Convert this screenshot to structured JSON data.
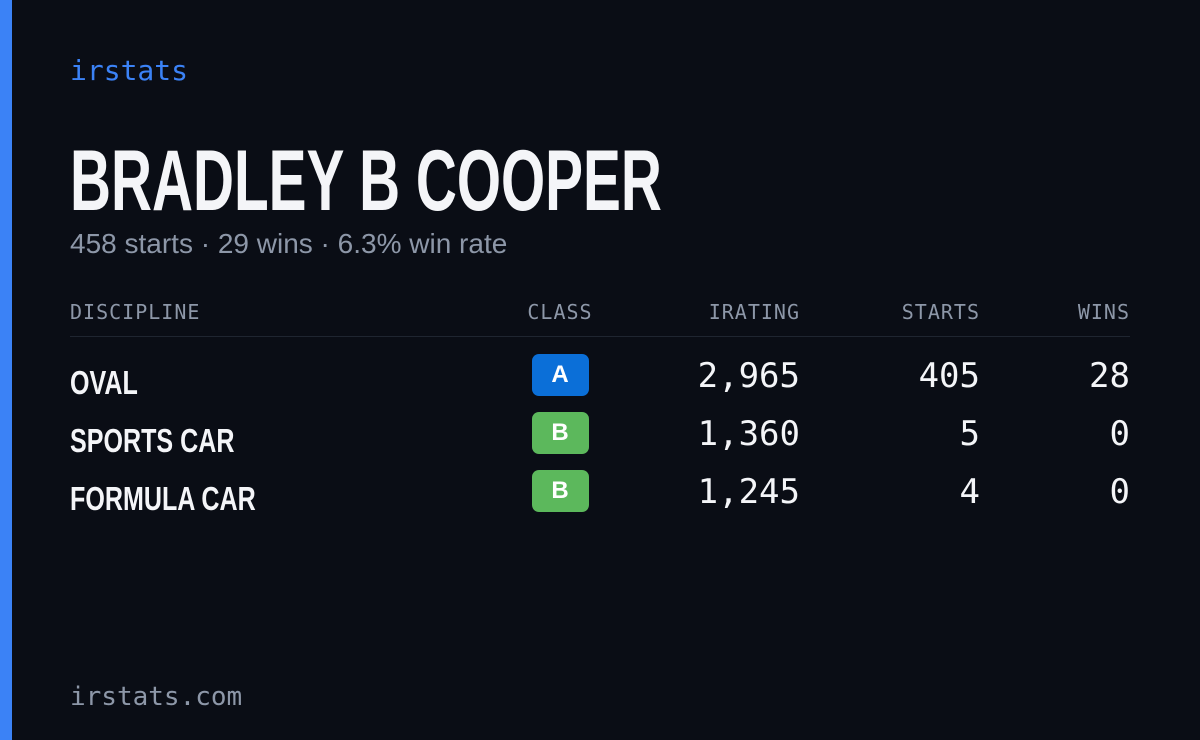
{
  "brand": "irstats",
  "name": "BRADLEY B COOPER",
  "summary": "458 starts · 29 wins · 6.3% win rate",
  "table": {
    "headers": [
      "DISCIPLINE",
      "CLASS",
      "IRATING",
      "STARTS",
      "WINS"
    ],
    "rows": [
      {
        "discipline": "OVAL",
        "class": "A",
        "class_color": "#0b6fd8",
        "irating": "2,965",
        "starts": "405",
        "wins": "28"
      },
      {
        "discipline": "SPORTS CAR",
        "class": "B",
        "class_color": "#5cb85c",
        "irating": "1,360",
        "starts": "5",
        "wins": "0"
      },
      {
        "discipline": "FORMULA CAR",
        "class": "B",
        "class_color": "#5cb85c",
        "irating": "1,245",
        "starts": "4",
        "wins": "0"
      }
    ]
  },
  "footer": "irstats.com"
}
